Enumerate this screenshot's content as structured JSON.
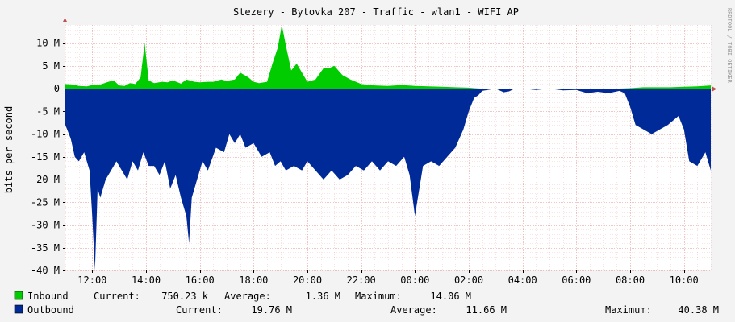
{
  "chart_data": {
    "type": "area",
    "title": "Stezery - Bytovka 207 - Traffic - wlan1 - WIFI AP",
    "ylabel": "bits per second",
    "side_label": "RRDTOOL / TOBI OETIKER",
    "ylim": [
      -40000000,
      14000000
    ],
    "grid": true,
    "y_ticks": [
      {
        "v": 10000000,
        "label": "10 M"
      },
      {
        "v": 5000000,
        "label": "5 M"
      },
      {
        "v": 0,
        "label": "0"
      },
      {
        "v": -5000000,
        "label": "-5 M"
      },
      {
        "v": -10000000,
        "label": "-10 M"
      },
      {
        "v": -15000000,
        "label": "-15 M"
      },
      {
        "v": -20000000,
        "label": "-20 M"
      },
      {
        "v": -25000000,
        "label": "-25 M"
      },
      {
        "v": -30000000,
        "label": "-30 M"
      },
      {
        "v": -35000000,
        "label": "-35 M"
      },
      {
        "v": -40000000,
        "label": "-40 M"
      }
    ],
    "x_range": [
      11.0,
      35.0
    ],
    "x_ticks": [
      {
        "v": 12,
        "label": "12:00"
      },
      {
        "v": 14,
        "label": "14:00"
      },
      {
        "v": 16,
        "label": "16:00"
      },
      {
        "v": 18,
        "label": "18:00"
      },
      {
        "v": 20,
        "label": "20:00"
      },
      {
        "v": 22,
        "label": "22:00"
      },
      {
        "v": 24,
        "label": "00:00"
      },
      {
        "v": 26,
        "label": "02:00"
      },
      {
        "v": 28,
        "label": "04:00"
      },
      {
        "v": 30,
        "label": "06:00"
      },
      {
        "v": 32,
        "label": "08:00"
      },
      {
        "v": 34,
        "label": "10:00"
      }
    ],
    "series": [
      {
        "name": "Inbound",
        "color": "#00cc00",
        "x": [
          11.0,
          11.3,
          11.5,
          11.8,
          12.0,
          12.3,
          12.6,
          12.8,
          13.0,
          13.2,
          13.4,
          13.6,
          13.8,
          13.95,
          14.1,
          14.3,
          14.6,
          14.8,
          15.0,
          15.3,
          15.5,
          15.8,
          16.0,
          16.3,
          16.5,
          16.8,
          17.0,
          17.3,
          17.5,
          17.8,
          18.0,
          18.2,
          18.5,
          18.7,
          18.9,
          19.05,
          19.2,
          19.4,
          19.6,
          19.8,
          20.0,
          20.3,
          20.6,
          20.8,
          21.0,
          21.3,
          21.6,
          22.0,
          22.5,
          23.0,
          23.5,
          24.0,
          24.5,
          25.0,
          25.5,
          26.0,
          26.2,
          26.5,
          27.0,
          28.0,
          29.0,
          30.0,
          30.5,
          31.0,
          31.5,
          32.0,
          32.5,
          33.0,
          33.5,
          34.0,
          34.5,
          35.0
        ],
        "y": [
          1000000,
          900000,
          600000,
          500000,
          800000,
          900000,
          1500000,
          1800000,
          700000,
          600000,
          1200000,
          1000000,
          2500000,
          10000000,
          1800000,
          1200000,
          1500000,
          1400000,
          1800000,
          1100000,
          2000000,
          1500000,
          1400000,
          1500000,
          1500000,
          2000000,
          1700000,
          2000000,
          3500000,
          2500000,
          1500000,
          1200000,
          1500000,
          5500000,
          9000000,
          14000000,
          9500000,
          4000000,
          5500000,
          3500000,
          1500000,
          2000000,
          4500000,
          4500000,
          5000000,
          3000000,
          2000000,
          1000000,
          700000,
          600000,
          800000,
          600000,
          500000,
          400000,
          300000,
          200000,
          100000,
          0,
          0,
          0,
          0,
          0,
          0,
          0,
          0,
          100000,
          300000,
          300000,
          300000,
          400000,
          500000,
          700000
        ]
      },
      {
        "name": "Outbound",
        "color": "#002a97",
        "x": [
          11.0,
          11.2,
          11.35,
          11.5,
          11.7,
          11.9,
          12.0,
          12.1,
          12.2,
          12.3,
          12.5,
          12.7,
          12.9,
          13.1,
          13.3,
          13.5,
          13.7,
          13.9,
          14.1,
          14.3,
          14.5,
          14.7,
          14.9,
          15.1,
          15.3,
          15.5,
          15.6,
          15.7,
          15.9,
          16.1,
          16.3,
          16.6,
          16.9,
          17.1,
          17.3,
          17.5,
          17.7,
          18.0,
          18.3,
          18.6,
          18.8,
          19.0,
          19.2,
          19.5,
          19.8,
          20.0,
          20.3,
          20.6,
          20.9,
          21.2,
          21.5,
          21.8,
          22.1,
          22.4,
          22.7,
          23.0,
          23.3,
          23.6,
          23.8,
          24.0,
          24.3,
          24.6,
          24.9,
          25.2,
          25.5,
          25.8,
          26.0,
          26.2,
          26.35,
          26.5,
          27.0,
          27.3,
          27.5,
          27.7,
          28.0,
          28.5,
          29.0,
          29.5,
          30.0,
          30.4,
          30.8,
          31.2,
          31.6,
          31.8,
          32.0,
          32.2,
          32.5,
          32.8,
          33.1,
          33.4,
          33.6,
          33.8,
          34.0,
          34.2,
          34.5,
          34.8,
          35.0
        ],
        "y": [
          -8000000,
          -11000000,
          -15000000,
          -16000000,
          -14000000,
          -18000000,
          -28000000,
          -40000000,
          -22000000,
          -24000000,
          -20000000,
          -18000000,
          -16000000,
          -18000000,
          -20000000,
          -16000000,
          -18000000,
          -14000000,
          -17000000,
          -17000000,
          -19000000,
          -16000000,
          -22000000,
          -19000000,
          -24000000,
          -28000000,
          -34000000,
          -24000000,
          -20000000,
          -16000000,
          -18000000,
          -13000000,
          -14000000,
          -10000000,
          -12000000,
          -10000000,
          -13000000,
          -12000000,
          -15000000,
          -14000000,
          -17000000,
          -16000000,
          -18000000,
          -17000000,
          -18000000,
          -16000000,
          -18000000,
          -20000000,
          -18000000,
          -20000000,
          -19000000,
          -17000000,
          -18000000,
          -16000000,
          -18000000,
          -16000000,
          -17000000,
          -15000000,
          -19000000,
          -28000000,
          -17000000,
          -16000000,
          -17000000,
          -15000000,
          -13000000,
          -9000000,
          -5000000,
          -2000000,
          -1500000,
          -500000,
          0,
          -800000,
          -600000,
          0,
          0,
          -300000,
          0,
          -400000,
          -300000,
          -1000000,
          -700000,
          -1000000,
          -500000,
          -1000000,
          -4000000,
          -8000000,
          -9000000,
          -10000000,
          -9000000,
          -8000000,
          -7000000,
          -6000000,
          -9000000,
          -16000000,
          -17000000,
          -14000000,
          -18000000
        ]
      }
    ]
  },
  "legend": {
    "inbound": {
      "name": "Inbound",
      "current_label": "Current:",
      "current": "750.23 k",
      "average_label": "Average:",
      "average": "1.36 M",
      "maximum_label": "Maximum:",
      "maximum": "14.06 M"
    },
    "outbound": {
      "name": "Outbound",
      "current_label": "Current:",
      "current": "19.76 M",
      "average_label": "Average:",
      "average": "11.66 M",
      "maximum_label": "Maximum:",
      "maximum": "40.38 M"
    }
  },
  "colors": {
    "background": "#f3f3f3",
    "plot_background": "#ffffff",
    "grid": "#e08080",
    "axis": "#000000",
    "inbound": "#00cc00",
    "outbound": "#002a97"
  }
}
